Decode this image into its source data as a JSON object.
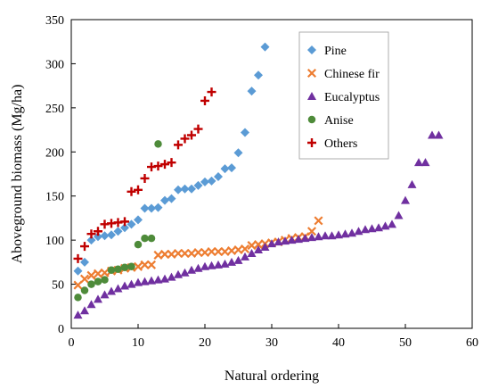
{
  "chart_data": {
    "type": "scatter",
    "title": "",
    "xlabel": "Natural ordering",
    "ylabel": "Aboveground biomass (Mg/ha)",
    "xlim": [
      0,
      60
    ],
    "ylim": [
      0,
      350
    ],
    "xticks": [
      0,
      10,
      20,
      30,
      40,
      50,
      60
    ],
    "yticks": [
      0,
      50,
      100,
      150,
      200,
      250,
      300,
      350
    ],
    "grid": false,
    "legend_position": "top-right",
    "series": [
      {
        "name": "Pine",
        "marker": "diamond",
        "color": "#5B9BD5",
        "x": [
          1,
          2,
          3,
          4,
          5,
          6,
          7,
          8,
          9,
          10,
          11,
          12,
          13,
          14,
          15,
          16,
          17,
          18,
          19,
          20,
          21,
          22,
          23,
          24,
          25,
          26,
          27,
          28,
          29
        ],
        "y": [
          65,
          75,
          100,
          104,
          105,
          106,
          110,
          114,
          118,
          123,
          136,
          136,
          137,
          145,
          147,
          157,
          158,
          158,
          162,
          166,
          167,
          172,
          181,
          182,
          199,
          222,
          269,
          287,
          319
        ]
      },
      {
        "name": "Chinese fir",
        "marker": "x",
        "color": "#ED7D31",
        "x": [
          1,
          2,
          3,
          4,
          5,
          6,
          7,
          8,
          9,
          10,
          11,
          12,
          13,
          14,
          15,
          16,
          17,
          18,
          19,
          20,
          21,
          22,
          23,
          24,
          25,
          26,
          27,
          28,
          29,
          30,
          31,
          32,
          33,
          34,
          35,
          36,
          37
        ],
        "y": [
          49,
          56,
          60,
          62,
          63,
          65,
          66,
          68,
          69,
          70,
          72,
          72,
          83,
          84,
          84,
          85,
          85,
          85,
          86,
          86,
          87,
          87,
          87,
          88,
          89,
          90,
          94,
          95,
          96,
          97,
          98,
          100,
          102,
          103,
          104,
          110,
          122
        ]
      },
      {
        "name": "Eucalyptus",
        "marker": "triangle",
        "color": "#7030A0",
        "x": [
          1,
          2,
          3,
          4,
          5,
          6,
          7,
          8,
          9,
          10,
          11,
          12,
          13,
          14,
          15,
          16,
          17,
          18,
          19,
          20,
          21,
          22,
          23,
          24,
          25,
          26,
          27,
          28,
          29,
          30,
          31,
          32,
          33,
          34,
          35,
          36,
          37,
          38,
          39,
          40,
          41,
          42,
          43,
          44,
          45,
          46,
          47,
          48,
          49,
          50,
          51,
          52,
          53,
          54,
          55
        ],
        "y": [
          15,
          20,
          27,
          33,
          38,
          42,
          45,
          48,
          50,
          52,
          53,
          54,
          55,
          56,
          58,
          61,
          63,
          66,
          68,
          70,
          71,
          72,
          73,
          75,
          77,
          81,
          85,
          89,
          92,
          96,
          98,
          99,
          100,
          101,
          102,
          103,
          104,
          105,
          105,
          106,
          107,
          108,
          110,
          112,
          113,
          114,
          116,
          118,
          128,
          145,
          163,
          188,
          188,
          219,
          219
        ]
      },
      {
        "name": "Anise",
        "marker": "circle",
        "color": "#4E8B3A",
        "x": [
          1,
          2,
          3,
          4,
          5,
          6,
          7,
          8,
          9,
          10,
          11,
          12,
          13
        ],
        "y": [
          35,
          43,
          50,
          53,
          55,
          66,
          67,
          69,
          70,
          95,
          102,
          102,
          209
        ]
      },
      {
        "name": "Others",
        "marker": "plus",
        "color": "#C00000",
        "x": [
          1,
          2,
          3,
          4,
          5,
          6,
          7,
          8,
          9,
          10,
          11,
          12,
          13,
          14,
          15,
          16,
          17,
          18,
          19,
          20,
          21
        ],
        "y": [
          79,
          93,
          107,
          110,
          118,
          119,
          120,
          121,
          155,
          157,
          170,
          183,
          184,
          186,
          188,
          208,
          215,
          219,
          226,
          258,
          268
        ]
      }
    ]
  }
}
